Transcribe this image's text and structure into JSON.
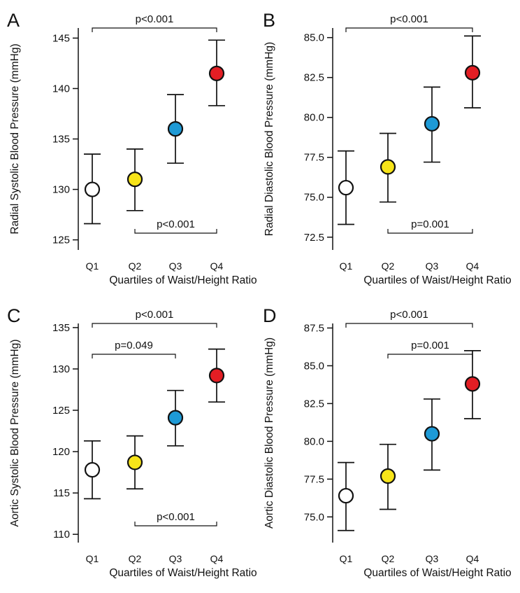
{
  "figure": {
    "xlabel_common": "Quartiles of Waist/Height Ratio",
    "categories": [
      "Q1",
      "Q2",
      "Q3",
      "Q4"
    ],
    "marker_colors": [
      "#ffffff",
      "#f7e419",
      "#1e9ad6",
      "#e31e24"
    ]
  },
  "chart_data": [
    {
      "panel_letter": "A",
      "type": "scatter",
      "title": "",
      "xlabel": "Quartiles of Waist/Height Ratio",
      "ylabel": "Radial Systolic Blood Pressure (mmHg)",
      "categories": [
        "Q1",
        "Q2",
        "Q3",
        "Q4"
      ],
      "ylim": [
        124,
        146
      ],
      "yticks": [
        "125",
        "130",
        "135",
        "140",
        "145"
      ],
      "ytick_values": [
        125,
        130,
        135,
        140,
        145
      ],
      "values": [
        130.0,
        131.0,
        136.0,
        141.5
      ],
      "lower": [
        126.6,
        127.9,
        132.6,
        138.3
      ],
      "upper": [
        133.5,
        134.0,
        139.4,
        144.8
      ],
      "brackets": [
        {
          "from": 0,
          "to": 3,
          "label": "p<0.001",
          "position": "top",
          "level": 0
        },
        {
          "from": 1,
          "to": 3,
          "label": "p<0.001",
          "position": "bottom",
          "level": 0
        }
      ]
    },
    {
      "panel_letter": "B",
      "type": "scatter",
      "title": "",
      "xlabel": "Quartiles of Waist/Height Ratio",
      "ylabel": "Radial Diastolic Blood Pressure (mmHg)",
      "categories": [
        "Q1",
        "Q2",
        "Q3",
        "Q4"
      ],
      "ylim": [
        71.7,
        85.6
      ],
      "yticks": [
        "72.5",
        "75.0",
        "77.5",
        "80.0",
        "82.5",
        "85.0"
      ],
      "ytick_values": [
        72.5,
        75.0,
        77.5,
        80.0,
        82.5,
        85.0
      ],
      "values": [
        75.6,
        76.9,
        79.6,
        82.8
      ],
      "lower": [
        73.3,
        74.7,
        77.2,
        80.6
      ],
      "upper": [
        77.9,
        79.0,
        81.9,
        85.1
      ],
      "brackets": [
        {
          "from": 0,
          "to": 3,
          "label": "p<0.001",
          "position": "top",
          "level": 0
        },
        {
          "from": 1,
          "to": 3,
          "label": "p=0.001",
          "position": "bottom",
          "level": 0
        }
      ]
    },
    {
      "panel_letter": "C",
      "type": "scatter",
      "title": "",
      "xlabel": "Quartiles of Waist/Height Ratio",
      "ylabel": "Aortic Systolic Blood Pressure (mmHg)",
      "categories": [
        "Q1",
        "Q2",
        "Q3",
        "Q4"
      ],
      "ylim": [
        109,
        135.5
      ],
      "yticks": [
        "110",
        "115",
        "120",
        "125",
        "130",
        "135"
      ],
      "ytick_values": [
        110,
        115,
        120,
        125,
        130,
        135
      ],
      "values": [
        117.8,
        118.7,
        124.1,
        129.2
      ],
      "lower": [
        114.3,
        115.5,
        120.7,
        126.0
      ],
      "upper": [
        121.3,
        121.9,
        127.4,
        132.4
      ],
      "brackets": [
        {
          "from": 0,
          "to": 3,
          "label": "p<0.001",
          "position": "top",
          "level": 0
        },
        {
          "from": 0,
          "to": 2,
          "label": "p=0.049",
          "position": "top",
          "level": 1
        },
        {
          "from": 1,
          "to": 3,
          "label": "p<0.001",
          "position": "bottom",
          "level": 0
        }
      ]
    },
    {
      "panel_letter": "D",
      "type": "scatter",
      "title": "",
      "xlabel": "Quartiles of Waist/Height Ratio",
      "ylabel": "Aortic Diastolic Blood Pressure (mmHg)",
      "categories": [
        "Q1",
        "Q2",
        "Q3",
        "Q4"
      ],
      "ylim": [
        73.3,
        87.8
      ],
      "yticks": [
        "75.0",
        "77.5",
        "80.0",
        "82.5",
        "85.0",
        "87.5"
      ],
      "ytick_values": [
        75.0,
        77.5,
        80.0,
        82.5,
        85.0,
        87.5
      ],
      "values": [
        76.4,
        77.7,
        80.5,
        83.8
      ],
      "lower": [
        74.1,
        75.5,
        78.1,
        81.5
      ],
      "upper": [
        78.6,
        79.8,
        82.8,
        86.0
      ],
      "brackets": [
        {
          "from": 0,
          "to": 3,
          "label": "p<0.001",
          "position": "top",
          "level": 0
        },
        {
          "from": 1,
          "to": 3,
          "label": "p=0.001",
          "position": "top",
          "level": 1
        }
      ]
    }
  ]
}
